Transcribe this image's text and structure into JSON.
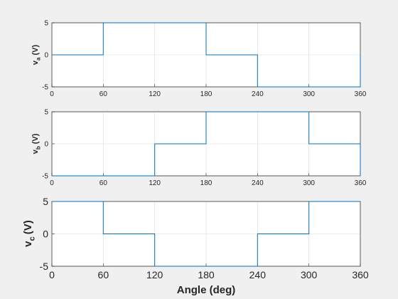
{
  "chart_data": [
    {
      "type": "line",
      "title": "",
      "xlabel": "",
      "ylabel": "v",
      "ylabel_subscript": "a",
      "ylabel_unit": "(V)",
      "xlim": [
        0,
        360
      ],
      "ylim": [
        -5,
        5
      ],
      "xticks": [
        "0",
        "60",
        "120",
        "180",
        "240",
        "300",
        "360"
      ],
      "yticks": [
        "-5",
        "0",
        "5"
      ],
      "grid": true,
      "series": [
        {
          "color": "#0072BD",
          "x": [
            0,
            60,
            60,
            180,
            180,
            240,
            240,
            360,
            360
          ],
          "y": [
            0,
            0,
            5,
            5,
            0,
            0,
            -5,
            -5,
            0
          ]
        }
      ]
    },
    {
      "type": "line",
      "title": "",
      "xlabel": "",
      "ylabel": "v",
      "ylabel_subscript": "b",
      "ylabel_unit": "(V)",
      "xlim": [
        0,
        360
      ],
      "ylim": [
        -5,
        5
      ],
      "xticks": [
        "0",
        "60",
        "120",
        "180",
        "240",
        "300",
        "360"
      ],
      "yticks": [
        "-5",
        "0",
        "5"
      ],
      "grid": true,
      "series": [
        {
          "color": "#0072BD",
          "x": [
            0,
            120,
            120,
            180,
            180,
            300,
            300,
            360,
            360
          ],
          "y": [
            -5,
            -5,
            0,
            0,
            5,
            5,
            0,
            0,
            -5
          ]
        }
      ]
    },
    {
      "type": "line",
      "title": "",
      "xlabel": "Angle (deg)",
      "ylabel": "v",
      "ylabel_subscript": "c",
      "ylabel_unit": "(V)",
      "xlim": [
        0,
        360
      ],
      "ylim": [
        -5,
        5
      ],
      "xticks": [
        "0",
        "60",
        "120",
        "180",
        "240",
        "300",
        "360"
      ],
      "yticks": [
        "-5",
        "0",
        "5"
      ],
      "grid": true,
      "series": [
        {
          "color": "#0072BD",
          "x": [
            0,
            60,
            60,
            120,
            120,
            240,
            240,
            300,
            300,
            360
          ],
          "y": [
            5,
            5,
            0,
            0,
            -5,
            -5,
            0,
            0,
            5,
            5
          ]
        }
      ]
    }
  ]
}
